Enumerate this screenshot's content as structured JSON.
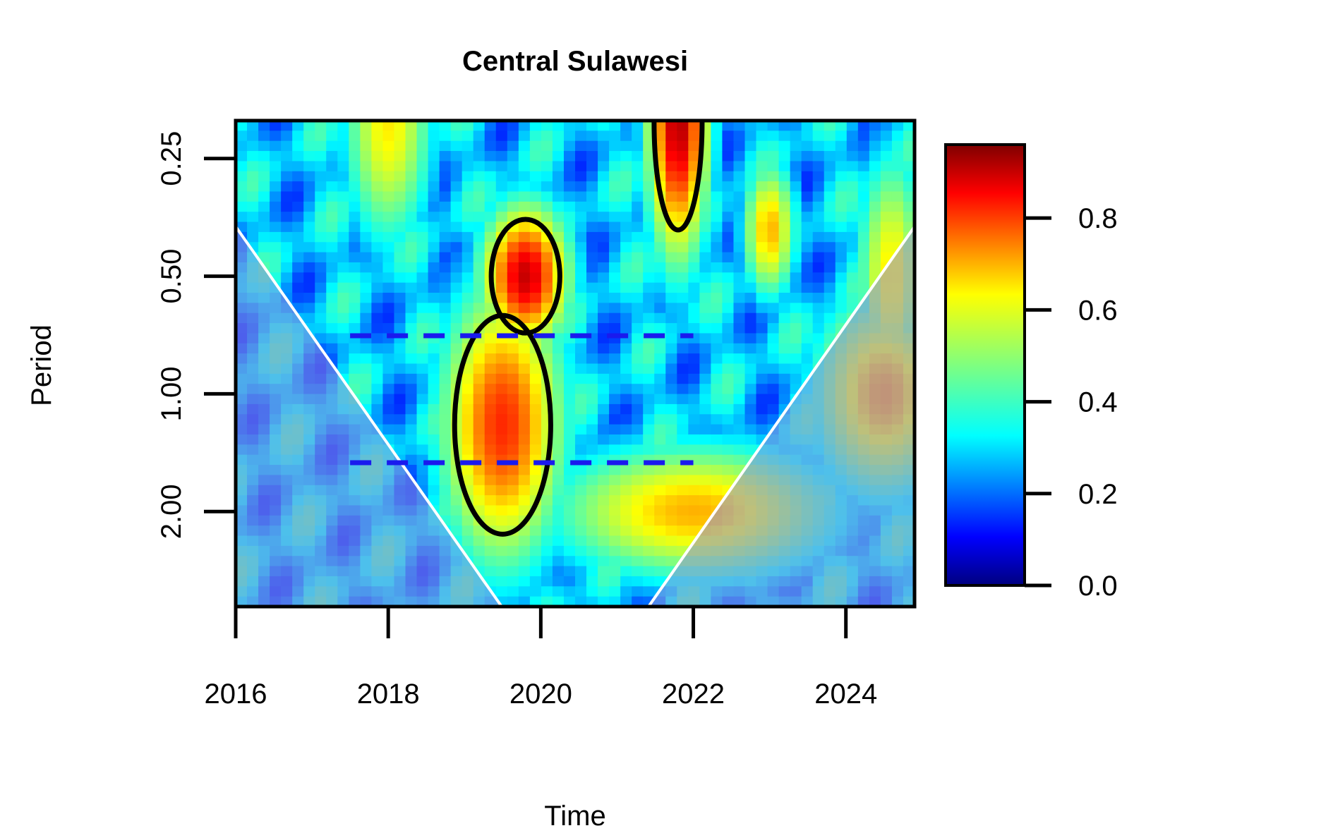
{
  "chart_data": {
    "type": "heatmap",
    "title": "Central Sulawesi",
    "xlabel": "Time",
    "ylabel": "Period",
    "x_ticks": [
      2016,
      2018,
      2020,
      2022,
      2024
    ],
    "x_tick_labels": [
      "2016",
      "2018",
      "2020",
      "2022",
      "2024"
    ],
    "xlim": [
      2016,
      2024.9
    ],
    "y_scale": "log2",
    "y_reversed": true,
    "y_ticks": [
      0.25,
      0.5,
      1,
      2
    ],
    "y_tick_labels": [
      "0.25",
      "0.50",
      "1.00",
      "2.00"
    ],
    "ylim": [
      0.2,
      3.5
    ],
    "colorbar": {
      "ticks": [
        0,
        0.2,
        0.4,
        0.6,
        0.8
      ],
      "tick_labels": [
        "0.0",
        "0.2",
        "0.4",
        "0.6",
        "0.8"
      ],
      "range": [
        0,
        0.96
      ]
    },
    "colors": {
      "low": "#00007f",
      "mid": "#00ff7f",
      "high": "#7f0000",
      "cone_shade": "#8c8cdc",
      "cone_line": "#ffffff",
      "ridge_line": "#1a1aee",
      "contour_line": "#000000"
    },
    "power_blobs": [
      {
        "x": 2019.8,
        "period": 0.5,
        "value": 0.9,
        "sx": 0.5,
        "sy": 0.13
      },
      {
        "x": 2019.5,
        "period": 1.2,
        "value": 0.82,
        "sx": 0.7,
        "sy": 0.25
      },
      {
        "x": 2021.8,
        "period": 0.2,
        "value": 0.92,
        "sx": 0.35,
        "sy": 0.25
      },
      {
        "x": 2022.0,
        "period": 2.0,
        "value": 0.7,
        "sx": 1.6,
        "sy": 0.12
      },
      {
        "x": 2024.5,
        "period": 1.0,
        "value": 0.72,
        "sx": 0.8,
        "sy": 0.18
      },
      {
        "x": 2018.0,
        "period": 0.2,
        "value": 0.65,
        "sx": 0.5,
        "sy": 0.22
      },
      {
        "x": 2023.0,
        "period": 0.38,
        "value": 0.7,
        "sx": 0.3,
        "sy": 0.12
      },
      {
        "x": 2024.6,
        "period": 0.5,
        "value": 0.65,
        "sx": 0.4,
        "sy": 0.22
      }
    ],
    "ridge_lines": [
      {
        "x_start": 2017.5,
        "x_end": 2022.0,
        "period": 1.5
      },
      {
        "x_start": 2017.5,
        "x_end": 2022.0,
        "period": 0.71
      }
    ]
  }
}
